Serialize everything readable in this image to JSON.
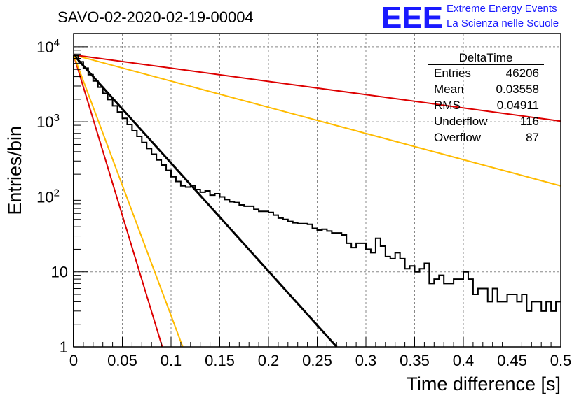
{
  "title": "SAVO-02-2020-02-19-00004",
  "brand": {
    "logo": "EEE",
    "line1": "Extreme Energy Events",
    "line2": "La Scienza nelle Scuole",
    "color": "#1a1aff"
  },
  "stats": {
    "name": "DeltaTime",
    "rows": [
      {
        "label": "Entries",
        "value": "46206"
      },
      {
        "label": "Mean",
        "value": "0.03558"
      },
      {
        "label": "RMS",
        "value": "0.04911"
      },
      {
        "label": "Underflow",
        "value": "116"
      },
      {
        "label": "Overflow",
        "value": "87"
      }
    ]
  },
  "chart_data": {
    "type": "line",
    "xlabel": "Time difference [s]",
    "ylabel": "Entries/bin",
    "xlim": [
      0,
      0.5
    ],
    "ylim": [
      1,
      15000
    ],
    "yscale": "log",
    "grid": true,
    "legend": "none",
    "x_ticks": [
      {
        "value": 0,
        "label": "0"
      },
      {
        "value": 0.05,
        "label": "0.05"
      },
      {
        "value": 0.1,
        "label": "0.1"
      },
      {
        "value": 0.15,
        "label": "0.15"
      },
      {
        "value": 0.2,
        "label": "0.2"
      },
      {
        "value": 0.25,
        "label": "0.25"
      },
      {
        "value": 0.3,
        "label": "0.3"
      },
      {
        "value": 0.35,
        "label": "0.35"
      },
      {
        "value": 0.4,
        "label": "0.4"
      },
      {
        "value": 0.45,
        "label": "0.45"
      },
      {
        "value": 0.5,
        "label": "0.5"
      }
    ],
    "y_ticks": [
      {
        "value": 1,
        "label": "1"
      },
      {
        "value": 10,
        "label": "10"
      },
      {
        "value": 100,
        "base": "10",
        "exp": "2"
      },
      {
        "value": 1000,
        "base": "10",
        "exp": "3"
      },
      {
        "value": 10000,
        "base": "10",
        "exp": "4"
      }
    ],
    "histogram": {
      "color": "#000000",
      "bin_width": 0.005,
      "values": [
        7600,
        6300,
        5200,
        4250,
        3500,
        2900,
        2400,
        1980,
        1630,
        1350,
        1110,
        920,
        760,
        640,
        530,
        440,
        370,
        310,
        265,
        225,
        185,
        160,
        140,
        135,
        140,
        125,
        115,
        120,
        105,
        110,
        100,
        92,
        86,
        84,
        78,
        75,
        75,
        68,
        64,
        64,
        62,
        57,
        52,
        50,
        47,
        45,
        44,
        44,
        43,
        38,
        36,
        37,
        35,
        33,
        33,
        31,
        24,
        21,
        24,
        24,
        20,
        18,
        28,
        22,
        16,
        15,
        18,
        15,
        11,
        12,
        10,
        11,
        13,
        7,
        8,
        9,
        7,
        7,
        8,
        8,
        10,
        8,
        5,
        6,
        6,
        4,
        6,
        4,
        4,
        5,
        5,
        4,
        5,
        3,
        4,
        4,
        3,
        4,
        3,
        4
      ]
    },
    "fit_lines": [
      {
        "color": "#000000",
        "x": [
          0,
          0.27
        ],
        "y": [
          7800,
          1
        ]
      },
      {
        "color": "#dd0000",
        "x": [
          0,
          0.091
        ],
        "y": [
          7800,
          1
        ]
      },
      {
        "color": "#ffbb00",
        "x": [
          0,
          0.112
        ],
        "y": [
          7800,
          1
        ]
      },
      {
        "color": "#ffbb00",
        "x": [
          0,
          0.5
        ],
        "y": [
          7800,
          140
        ]
      },
      {
        "color": "#dd0000",
        "x": [
          0,
          0.5
        ],
        "y": [
          7800,
          1020
        ]
      }
    ]
  }
}
